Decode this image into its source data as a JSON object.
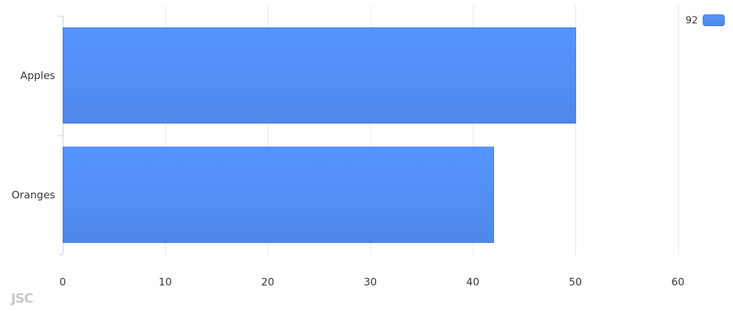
{
  "chart_data": {
    "type": "bar",
    "orientation": "horizontal",
    "categories": [
      "Apples",
      "Oranges"
    ],
    "series": [
      {
        "name": "92",
        "values": [
          50,
          42
        ],
        "color": "#5595ff"
      }
    ],
    "xlim": [
      0,
      60
    ],
    "x_ticks": [
      0,
      10,
      20,
      30,
      40,
      50,
      60
    ],
    "grid": true,
    "legend_position": "top-right"
  },
  "logo_text": "JSC",
  "colors": {
    "bar_top": "#5595ff",
    "bar_bottom": "#4f88ea",
    "bar_border": "#3b6fd6",
    "grid": "#e5e5e5",
    "axis": "#cccccc",
    "text": "#333333"
  }
}
